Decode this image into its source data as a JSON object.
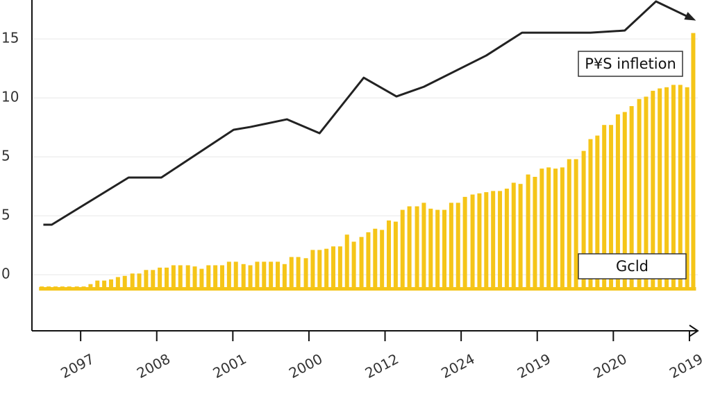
{
  "chart_data": {
    "type": "bar_line",
    "xlim": [
      -0.64,
      8.11
    ],
    "ylim": [
      -4.76,
      23.3
    ],
    "xticks": [
      {
        "value": 0,
        "label": "2097"
      },
      {
        "value": 1,
        "label": "2008"
      },
      {
        "value": 2,
        "label": "2001"
      },
      {
        "value": 3,
        "label": "2000"
      },
      {
        "value": 4,
        "label": "2012"
      },
      {
        "value": 5,
        "label": "2024"
      },
      {
        "value": 6,
        "label": "2019"
      },
      {
        "value": 7,
        "label": "2020"
      },
      {
        "value": 8,
        "label": "2019"
      }
    ],
    "yticks": [
      {
        "value": 20,
        "label": "15"
      },
      {
        "value": 15,
        "label": "10"
      },
      {
        "value": 10,
        "label": "5"
      },
      5,
      0
    ],
    "grid": true,
    "baseline": -1.2,
    "series": [
      {
        "name": "P¥S infletion",
        "kind": "line",
        "color": "#222222",
        "x": [
          -0.49,
          -0.38,
          0.63,
          1.06,
          2.01,
          2.23,
          2.71,
          3.14,
          3.72,
          4.15,
          4.51,
          5.33,
          5.8,
          6.7,
          7.15,
          7.56,
          8.02
        ],
        "values": [
          4.24,
          4.24,
          8.24,
          8.24,
          12.29,
          12.53,
          13.18,
          12.0,
          16.71,
          15.12,
          15.94,
          18.59,
          20.53,
          20.53,
          20.71,
          23.18,
          21.76
        ]
      },
      {
        "name": "Gcld",
        "kind": "bar",
        "color": "#f5c518",
        "x": [
          -0.51,
          -0.42,
          -0.33,
          -0.24,
          -0.15,
          -0.05,
          0.04,
          0.13,
          0.22,
          0.31,
          0.4,
          0.49,
          0.58,
          0.68,
          0.77,
          0.86,
          0.95,
          1.04,
          1.13,
          1.22,
          1.31,
          1.41,
          1.5,
          1.59,
          1.68,
          1.77,
          1.86,
          1.95,
          2.04,
          2.14,
          2.23,
          2.32,
          2.41,
          2.5,
          2.59,
          2.68,
          2.77,
          2.86,
          2.96,
          3.05,
          3.14,
          3.23,
          3.32,
          3.41,
          3.5,
          3.59,
          3.69,
          3.78,
          3.87,
          3.96,
          4.05,
          4.14,
          4.23,
          4.32,
          4.42,
          4.51,
          4.6,
          4.69,
          4.78,
          4.87,
          4.96,
          5.05,
          5.15,
          5.24,
          5.33,
          5.42,
          5.51,
          5.6,
          5.69,
          5.78,
          5.88,
          5.97,
          6.06,
          6.15,
          6.24,
          6.33,
          6.42,
          6.51,
          6.61,
          6.7,
          6.79,
          6.88,
          6.97,
          7.06,
          7.15,
          7.24,
          7.34,
          7.43,
          7.52,
          7.61,
          7.7,
          7.79,
          7.88,
          7.97,
          8.05
        ],
        "values": [
          -1.0,
          -1.0,
          -1.0,
          -1.0,
          -1.0,
          -1.0,
          -1.0,
          -0.8,
          -0.5,
          -0.5,
          -0.4,
          -0.2,
          -0.1,
          0.1,
          0.1,
          0.4,
          0.4,
          0.6,
          0.6,
          0.8,
          0.8,
          0.8,
          0.7,
          0.5,
          0.8,
          0.8,
          0.8,
          1.1,
          1.1,
          0.9,
          0.8,
          1.1,
          1.1,
          1.1,
          1.1,
          0.9,
          1.5,
          1.5,
          1.4,
          2.1,
          2.1,
          2.2,
          2.4,
          2.4,
          3.4,
          2.8,
          3.2,
          3.6,
          3.9,
          3.8,
          4.6,
          4.5,
          5.5,
          5.8,
          5.8,
          6.1,
          5.6,
          5.5,
          5.5,
          6.1,
          6.1,
          6.6,
          6.8,
          6.9,
          7.0,
          7.1,
          7.1,
          7.3,
          7.8,
          7.7,
          8.5,
          8.3,
          9.0,
          9.1,
          9.0,
          9.1,
          9.8,
          9.8,
          10.5,
          11.5,
          11.8,
          12.7,
          12.7,
          13.6,
          13.8,
          14.3,
          14.9,
          15.1,
          15.6,
          15.8,
          15.9,
          16.1,
          16.1,
          15.9,
          20.5
        ]
      }
    ]
  }
}
